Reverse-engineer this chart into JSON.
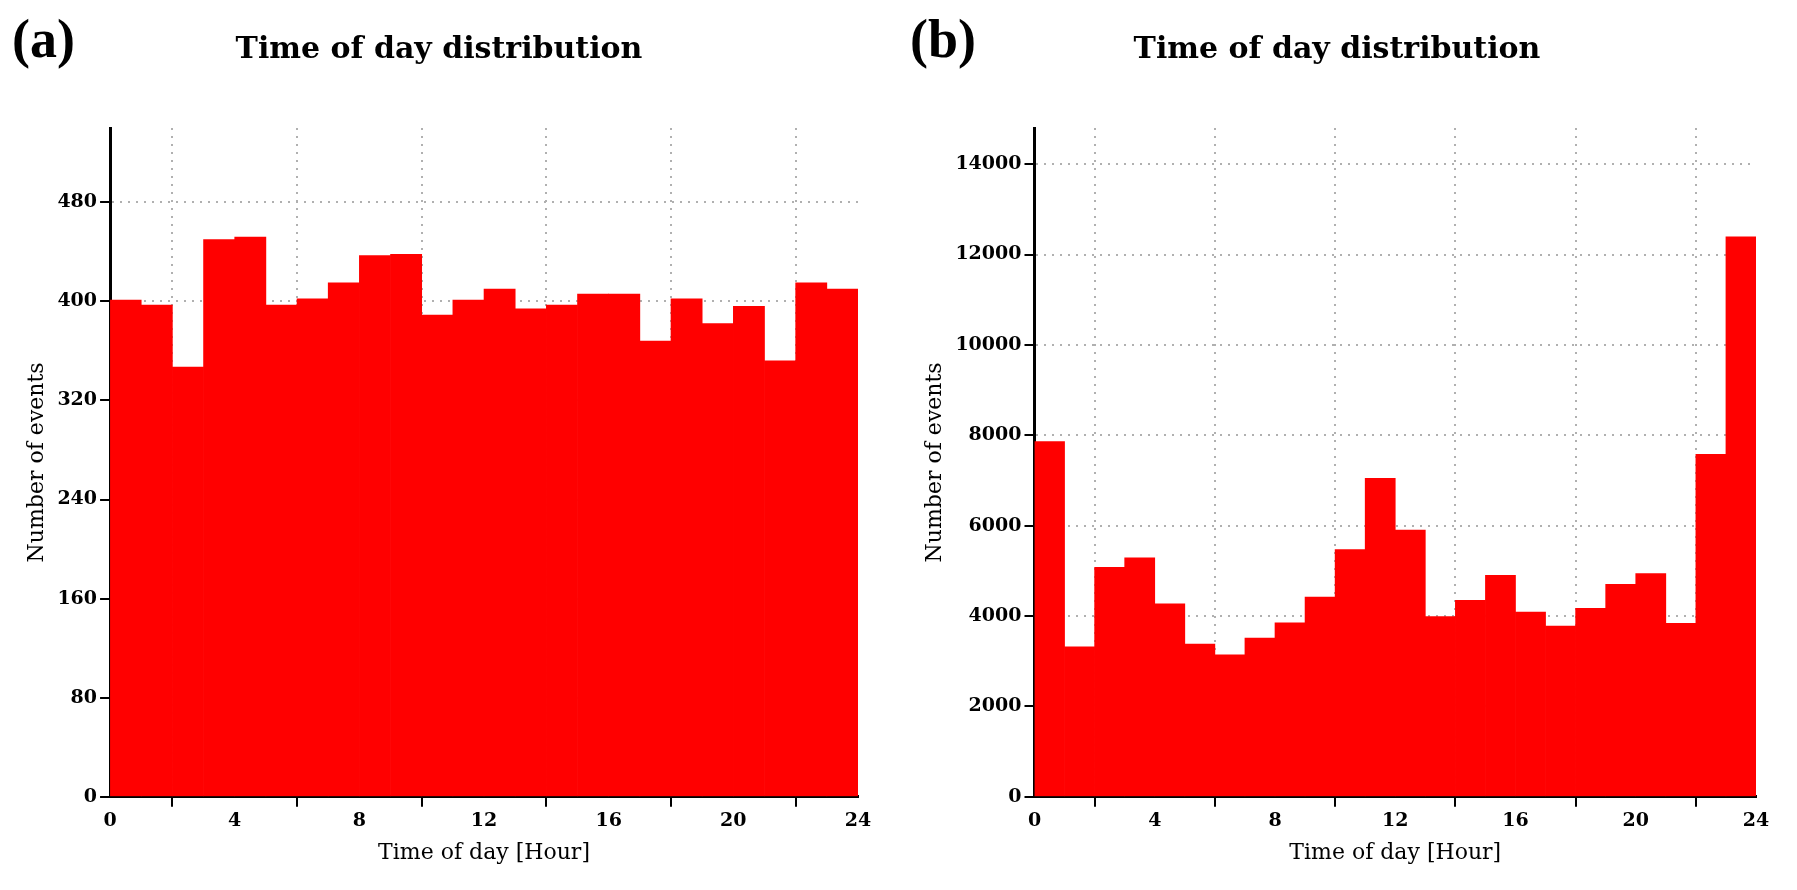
{
  "chart_data": [
    {
      "type": "histogram",
      "title": "Time of day distribution",
      "annotations": [
        "(a)"
      ],
      "xlabel": "Time of day [Hour]",
      "ylabel": "Number of events",
      "bins": [
        0,
        1,
        2,
        3,
        4,
        5,
        6,
        7,
        8,
        9,
        10,
        11,
        12,
        13,
        14,
        15,
        16,
        17,
        18,
        19,
        20,
        21,
        22,
        23,
        24
      ],
      "values": [
        401,
        397,
        347,
        450,
        452,
        397,
        402,
        415,
        437,
        438,
        389,
        401,
        410,
        394,
        397,
        406,
        406,
        368,
        402,
        382,
        396,
        352,
        415,
        410
      ],
      "color": "#ff0000",
      "xlim": [
        0,
        24
      ],
      "xticks": [
        0,
        4,
        8,
        12,
        16,
        20,
        24
      ],
      "ylim": [
        0,
        540
      ],
      "yticks": [
        0,
        80,
        160,
        240,
        320,
        400,
        480
      ],
      "grid": true,
      "legend": false
    },
    {
      "type": "histogram",
      "title": "Time of day distribution",
      "annotations": [
        "(b)"
      ],
      "xlabel": "Time of day [Hour]",
      "ylabel": "Number of events",
      "bins": [
        0,
        1,
        2,
        3,
        4,
        5,
        6,
        7,
        8,
        9,
        10,
        11,
        12,
        13,
        14,
        15,
        16,
        17,
        18,
        19,
        20,
        21,
        22,
        23,
        24
      ],
      "values": [
        7860,
        3320,
        5080,
        5290,
        4270,
        3380,
        3140,
        3510,
        3850,
        4420,
        5470,
        7050,
        5900,
        3990,
        4350,
        4900,
        4090,
        3780,
        4170,
        4700,
        4940,
        3840,
        7580,
        12390
      ],
      "color": "#ff0000",
      "xlim": [
        0,
        24
      ],
      "xticks": [
        0,
        4,
        8,
        12,
        16,
        20,
        24
      ],
      "ylim": [
        0,
        14800
      ],
      "yticks": [
        0,
        2000,
        4000,
        6000,
        8000,
        10000,
        12000,
        14000
      ],
      "grid": true,
      "legend": false
    }
  ]
}
